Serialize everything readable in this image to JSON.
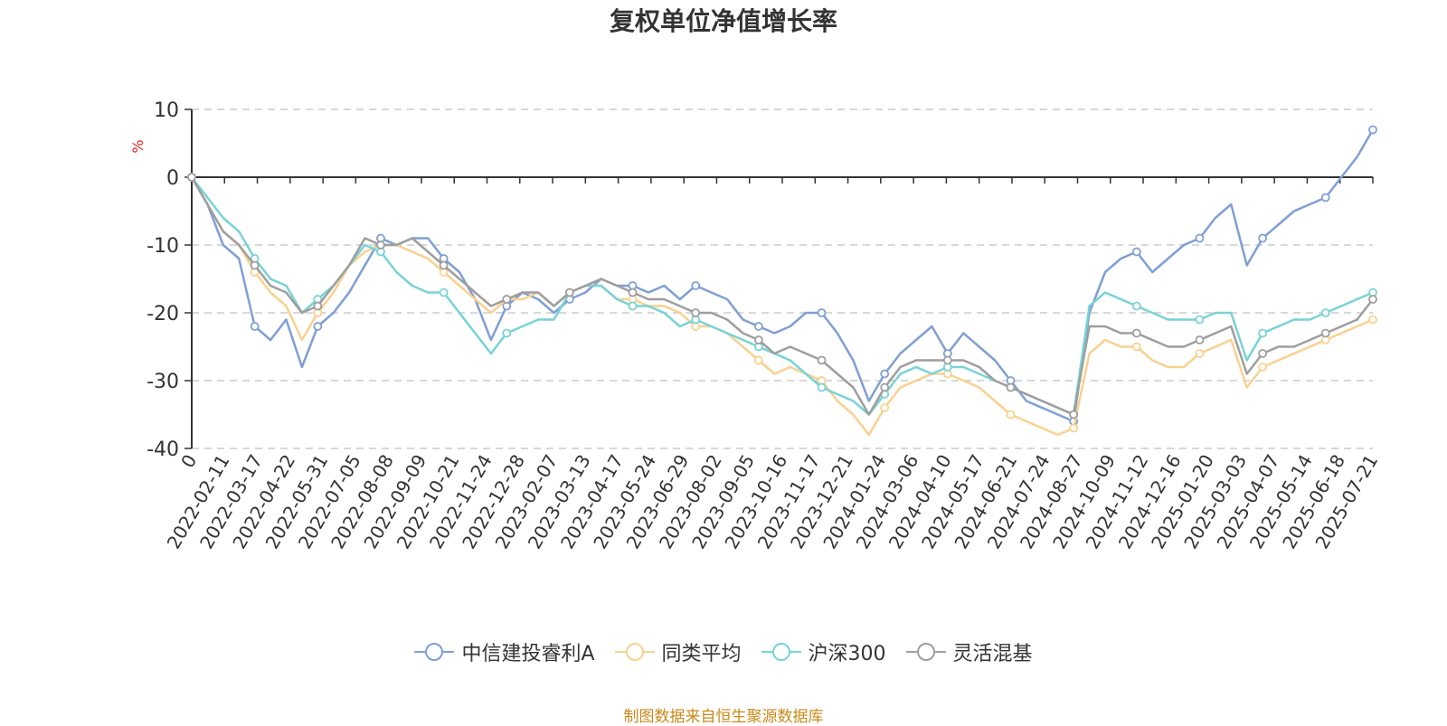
{
  "chart_data": {
    "type": "line",
    "title": "复权单位净值增长率",
    "ylabel": "%",
    "ylim": [
      -40,
      10
    ],
    "yticks": [
      -40,
      -30,
      -20,
      -10,
      0,
      10
    ],
    "grid": true,
    "legend_position": "bottom",
    "x_tick_labels": [
      "0",
      "2022-02-11",
      "2022-03-17",
      "2022-04-22",
      "2022-05-31",
      "2022-07-05",
      "2022-08-08",
      "2022-09-09",
      "2022-10-21",
      "2022-11-24",
      "2022-12-28",
      "2023-02-07",
      "2023-03-13",
      "2023-04-17",
      "2023-05-24",
      "2023-06-29",
      "2023-08-02",
      "2023-09-05",
      "2023-10-16",
      "2023-11-17",
      "2023-12-21",
      "2024-01-24",
      "2024-03-06",
      "2024-04-10",
      "2024-05-17",
      "2024-06-21",
      "2024-07-24",
      "2024-08-27",
      "2024-10-09",
      "2024-11-12",
      "2024-12-16",
      "2025-01-20",
      "2025-03-03",
      "2025-04-07",
      "2025-05-14",
      "2025-06-18",
      "2025-07-21"
    ],
    "series": [
      {
        "name": "中信建投睿利A",
        "color": "#7f9fd5",
        "values": [
          0,
          -4,
          -10,
          -12,
          -22,
          -24,
          -21,
          -28,
          -22,
          -20,
          -17,
          -13,
          -9,
          -10,
          -9,
          -9,
          -12,
          -14,
          -18,
          -24,
          -19,
          -17,
          -18,
          -20,
          -18,
          -17,
          -15,
          -16,
          -16,
          -17,
          -16,
          -18,
          -16,
          -17,
          -18,
          -21,
          -22,
          -23,
          -22,
          -20,
          -20,
          -23,
          -27,
          -33,
          -29,
          -26,
          -24,
          -22,
          -26,
          -23,
          -25,
          -27,
          -30,
          -33,
          -34,
          -35,
          -36,
          -20,
          -14,
          -12,
          -11,
          -14,
          -12,
          -10,
          -9,
          -6,
          -4,
          -13,
          -9,
          -7,
          -5,
          -4,
          -3,
          0,
          3,
          7
        ]
      },
      {
        "name": "同类平均",
        "color": "#f9d18f",
        "values": [
          0,
          -4,
          -8,
          -10,
          -14,
          -17,
          -19,
          -24,
          -20,
          -17,
          -13,
          -11,
          -10,
          -10,
          -11,
          -12,
          -14,
          -16,
          -18,
          -20,
          -18,
          -18,
          -17,
          -19,
          -17,
          -16,
          -16,
          -18,
          -18,
          -19,
          -19,
          -20,
          -22,
          -22,
          -23,
          -25,
          -27,
          -29,
          -28,
          -29,
          -30,
          -33,
          -35,
          -38,
          -34,
          -31,
          -30,
          -29,
          -29,
          -30,
          -31,
          -33,
          -35,
          -36,
          -37,
          -38,
          -37,
          -26,
          -24,
          -25,
          -25,
          -27,
          -28,
          -28,
          -26,
          -25,
          -24,
          -31,
          -28,
          -27,
          -26,
          -25,
          -24,
          -23,
          -22,
          -21
        ]
      },
      {
        "name": "沪深300",
        "color": "#78d3d6",
        "values": [
          0,
          -3,
          -6,
          -8,
          -12,
          -15,
          -16,
          -20,
          -18,
          -16,
          -13,
          -10,
          -11,
          -14,
          -16,
          -17,
          -17,
          -20,
          -23,
          -26,
          -23,
          -22,
          -21,
          -21,
          -17,
          -16,
          -16,
          -18,
          -19,
          -19,
          -20,
          -22,
          -21,
          -22,
          -23,
          -24,
          -25,
          -26,
          -27,
          -29,
          -31,
          -32,
          -33,
          -35,
          -32,
          -29,
          -28,
          -29,
          -28,
          -28,
          -29,
          -30,
          -31,
          -32,
          -33,
          -34,
          -35,
          -19,
          -17,
          -18,
          -19,
          -20,
          -21,
          -21,
          -21,
          -20,
          -20,
          -27,
          -23,
          -22,
          -21,
          -21,
          -20,
          -19,
          -18,
          -17
        ]
      },
      {
        "name": "灵活混基",
        "color": "#9e9e9e",
        "values": [
          0,
          -4,
          -8,
          -10,
          -13,
          -16,
          -17,
          -20,
          -19,
          -16,
          -13,
          -9,
          -10,
          -10,
          -9,
          -11,
          -13,
          -15,
          -17,
          -19,
          -18,
          -17,
          -17,
          -19,
          -17,
          -16,
          -15,
          -16,
          -17,
          -18,
          -18,
          -19,
          -20,
          -20,
          -21,
          -23,
          -24,
          -26,
          -25,
          -26,
          -27,
          -29,
          -31,
          -35,
          -31,
          -28,
          -27,
          -27,
          -27,
          -27,
          -28,
          -30,
          -31,
          -32,
          -33,
          -34,
          -35,
          -22,
          -22,
          -23,
          -23,
          -24,
          -25,
          -25,
          -24,
          -23,
          -22,
          -29,
          -26,
          -25,
          -25,
          -24,
          -23,
          -22,
          -21,
          -18
        ]
      }
    ]
  },
  "source_note": "制图数据来自恒生聚源数据库"
}
